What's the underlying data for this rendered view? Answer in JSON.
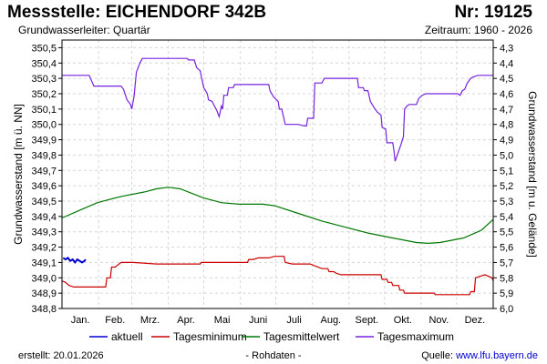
{
  "header": {
    "title": "Messstelle: EICHENDORF 342B",
    "nr": "Nr: 19125",
    "subtitle": "Grundwasserleiter: Quartär",
    "zeitraum": "Zeitraum: 1960 - 2026"
  },
  "footer": {
    "erstellt": "erstellt:  20.01.2026",
    "rohdaten": "- Rohdaten -",
    "quelle_label": "Quelle: ",
    "quelle_url": "www.lfu.bayern.de"
  },
  "chart_data": {
    "type": "line",
    "ylabel": "Grundwasserstand [m ü. NN]",
    "y2label": "Grundwasserstand [m u. Gelände]",
    "ylim": [
      348.8,
      350.55
    ],
    "y2lim": [
      6.0,
      4.25
    ],
    "yticks": [
      "348,8",
      "348,9",
      "349,0",
      "349,1",
      "349,2",
      "349,3",
      "349,4",
      "349,5",
      "349,6",
      "349,7",
      "349,8",
      "349,9",
      "350,0",
      "350,1",
      "350,2",
      "350,3",
      "350,4",
      "350,5"
    ],
    "y2ticks": [
      "6,0",
      "5,9",
      "5,8",
      "5,7",
      "5,6",
      "5,5",
      "5,4",
      "5,3",
      "5,2",
      "5,1",
      "5,0",
      "4,9",
      "4,8",
      "4,7",
      "4,6",
      "4,5",
      "4,4",
      "4,3"
    ],
    "x_months": [
      "Jan.",
      "Feb.",
      "Mrz.",
      "Apr.",
      "Mai",
      "Juni",
      "Juli",
      "Aug.",
      "Sept.",
      "Okt.",
      "Nov.",
      "Dez."
    ],
    "grid": true,
    "legend_position": "bottom",
    "series": [
      {
        "name": "aktuell",
        "color": "#0000cc",
        "points": [
          [
            1,
            349.13
          ],
          [
            3,
            349.12
          ],
          [
            5,
            349.13
          ],
          [
            7,
            349.11
          ],
          [
            9,
            349.12
          ],
          [
            11,
            349.1
          ],
          [
            13,
            349.12
          ],
          [
            15,
            349.11
          ],
          [
            17,
            349.1
          ],
          [
            19,
            349.11
          ],
          [
            20,
            349.12
          ]
        ]
      },
      {
        "name": "Tagesminimum",
        "color": "#cc0000",
        "points": [
          [
            0,
            348.98
          ],
          [
            3,
            348.97
          ],
          [
            6,
            348.95
          ],
          [
            10,
            348.94
          ],
          [
            30,
            348.94
          ],
          [
            37,
            348.94
          ],
          [
            38,
            349.0
          ],
          [
            41,
            349.0
          ],
          [
            42,
            349.07
          ],
          [
            45,
            349.07
          ],
          [
            50,
            349.1
          ],
          [
            60,
            349.1
          ],
          [
            80,
            349.09
          ],
          [
            95,
            349.09
          ],
          [
            117,
            349.09
          ],
          [
            118,
            349.1
          ],
          [
            132,
            349.1
          ],
          [
            135,
            349.1
          ],
          [
            140,
            349.1
          ],
          [
            157,
            349.1
          ],
          [
            158,
            349.12
          ],
          [
            162,
            349.12
          ],
          [
            166,
            349.13
          ],
          [
            175,
            349.13
          ],
          [
            180,
            349.14
          ],
          [
            188,
            349.14
          ],
          [
            189,
            349.1
          ],
          [
            195,
            349.09
          ],
          [
            210,
            349.09
          ],
          [
            220,
            349.06
          ],
          [
            225,
            349.06
          ],
          [
            226,
            349.04
          ],
          [
            230,
            349.04
          ],
          [
            232,
            349.03
          ],
          [
            236,
            349.02
          ],
          [
            270,
            349.02
          ],
          [
            271,
            348.99
          ],
          [
            275,
            348.99
          ],
          [
            276,
            348.97
          ],
          [
            279,
            348.97
          ],
          [
            280,
            348.95
          ],
          [
            285,
            348.95
          ],
          [
            286,
            348.92
          ],
          [
            289,
            348.92
          ],
          [
            290,
            348.9
          ],
          [
            315,
            348.9
          ],
          [
            316,
            348.89
          ],
          [
            345,
            348.89
          ],
          [
            346,
            348.91
          ],
          [
            349,
            348.91
          ],
          [
            350,
            349.0
          ],
          [
            354,
            349.01
          ],
          [
            358,
            349.02
          ],
          [
            361,
            349.01
          ],
          [
            364,
            349.0
          ],
          [
            365,
            348.98
          ]
        ]
      },
      {
        "name": "Tagesmittelwert",
        "color": "#007700",
        "points": [
          [
            0,
            349.39
          ],
          [
            15,
            349.44
          ],
          [
            30,
            349.49
          ],
          [
            50,
            349.53
          ],
          [
            70,
            349.56
          ],
          [
            80,
            349.58
          ],
          [
            90,
            349.59
          ],
          [
            100,
            349.58
          ],
          [
            120,
            349.52
          ],
          [
            135,
            349.49
          ],
          [
            150,
            349.48
          ],
          [
            170,
            349.48
          ],
          [
            180,
            349.47
          ],
          [
            200,
            349.42
          ],
          [
            220,
            349.37
          ],
          [
            240,
            349.33
          ],
          [
            260,
            349.29
          ],
          [
            280,
            349.26
          ],
          [
            300,
            349.23
          ],
          [
            310,
            349.225
          ],
          [
            320,
            349.23
          ],
          [
            340,
            349.26
          ],
          [
            355,
            349.31
          ],
          [
            365,
            349.38
          ]
        ]
      },
      {
        "name": "Tagesmaximum",
        "color": "#7722dd",
        "points": [
          [
            0,
            350.32
          ],
          [
            23,
            350.32
          ],
          [
            27,
            350.25
          ],
          [
            32,
            350.25
          ],
          [
            50,
            350.25
          ],
          [
            52,
            350.23
          ],
          [
            55,
            350.16
          ],
          [
            58,
            350.13
          ],
          [
            59,
            350.1
          ],
          [
            61,
            350.18
          ],
          [
            63,
            350.34
          ],
          [
            66,
            350.4
          ],
          [
            68,
            350.43
          ],
          [
            82,
            350.43
          ],
          [
            100,
            350.43
          ],
          [
            106,
            350.43
          ],
          [
            107,
            350.42
          ],
          [
            112,
            350.42
          ],
          [
            114,
            350.37
          ],
          [
            117,
            350.35
          ],
          [
            118,
            350.31
          ],
          [
            120,
            350.24
          ],
          [
            123,
            350.2
          ],
          [
            124,
            350.16
          ],
          [
            127,
            350.15
          ],
          [
            131,
            350.09
          ],
          [
            133,
            350.05
          ],
          [
            135,
            350.12
          ],
          [
            136,
            350.1
          ],
          [
            137,
            350.19
          ],
          [
            140,
            350.19
          ],
          [
            141,
            350.24
          ],
          [
            145,
            350.24
          ],
          [
            146,
            350.26
          ],
          [
            165,
            350.26
          ],
          [
            175,
            350.26
          ],
          [
            176,
            350.22
          ],
          [
            179,
            350.18
          ],
          [
            183,
            350.15
          ],
          [
            184,
            350.1
          ],
          [
            186,
            350.1
          ],
          [
            189,
            350.0
          ],
          [
            200,
            350.0
          ],
          [
            205,
            349.99
          ],
          [
            207,
            349.99
          ],
          [
            208,
            350.04
          ],
          [
            213,
            350.04
          ],
          [
            214,
            350.27
          ],
          [
            220,
            350.27
          ],
          [
            222,
            350.3
          ],
          [
            240,
            350.3
          ],
          [
            250,
            350.3
          ],
          [
            251,
            350.24
          ],
          [
            255,
            350.24
          ],
          [
            256,
            350.22
          ],
          [
            259,
            350.22
          ],
          [
            261,
            350.15
          ],
          [
            265,
            350.1
          ],
          [
            267,
            350.08
          ],
          [
            270,
            350.06
          ],
          [
            271,
            349.98
          ],
          [
            274,
            349.97
          ],
          [
            275,
            349.88
          ],
          [
            280,
            349.88
          ],
          [
            281,
            349.83
          ],
          [
            282,
            349.76
          ],
          [
            287,
            349.87
          ],
          [
            289,
            349.92
          ],
          [
            290,
            350.1
          ],
          [
            292,
            350.12
          ],
          [
            294,
            350.13
          ],
          [
            300,
            350.13
          ],
          [
            302,
            350.17
          ],
          [
            305,
            350.19
          ],
          [
            308,
            350.2
          ],
          [
            320,
            350.2
          ],
          [
            335,
            350.2
          ],
          [
            337,
            350.19
          ],
          [
            339,
            350.22
          ],
          [
            341,
            350.23
          ],
          [
            343,
            350.27
          ],
          [
            346,
            350.3
          ],
          [
            348,
            350.31
          ],
          [
            352,
            350.32
          ],
          [
            365,
            350.32
          ]
        ]
      }
    ]
  }
}
